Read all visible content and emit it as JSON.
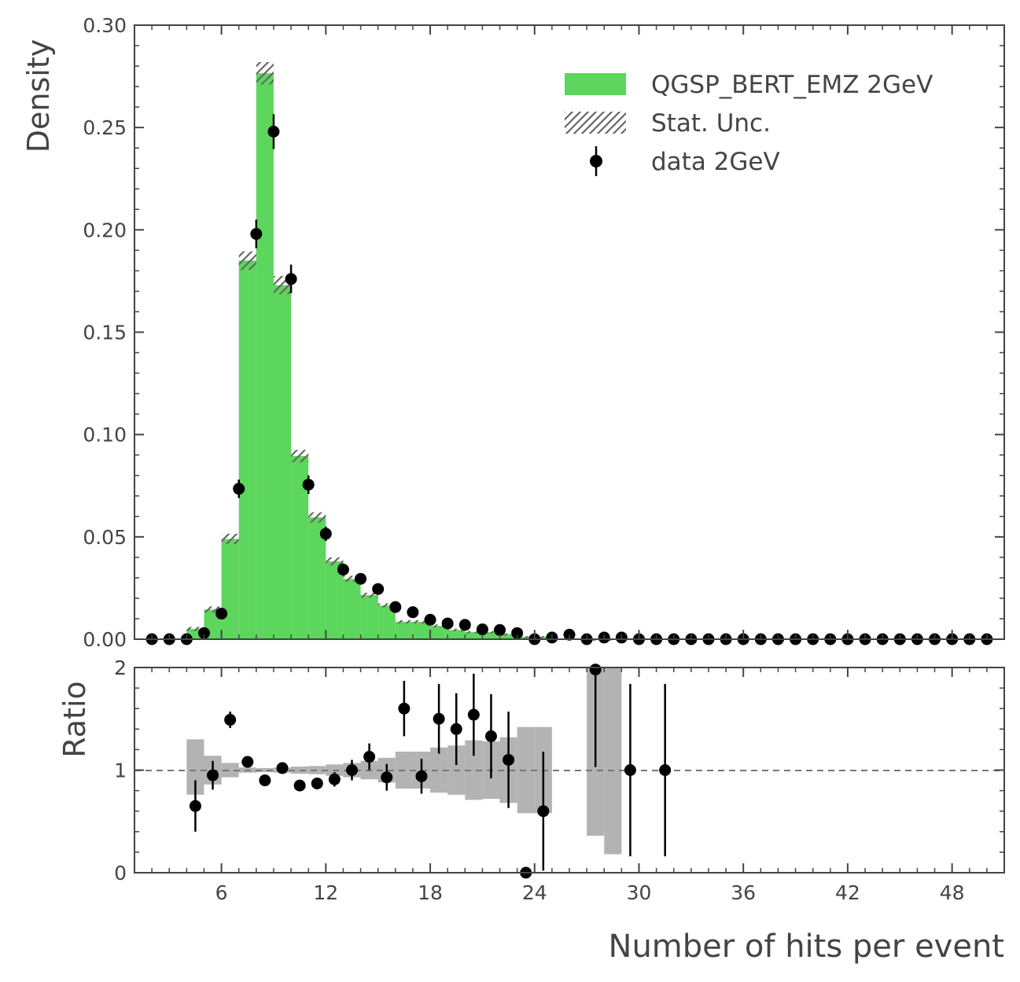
{
  "chart_data": [
    {
      "type": "bar",
      "panel": "main",
      "ylabel": "Density",
      "xlabel": "",
      "xlim": [
        1,
        51
      ],
      "ylim": [
        0,
        0.3
      ],
      "yticks": [
        "0.00",
        "0.05",
        "0.10",
        "0.15",
        "0.20",
        "0.25",
        "0.30"
      ],
      "bin_edges": [
        1,
        2,
        3,
        4,
        5,
        6,
        7,
        8,
        9,
        10,
        11,
        12,
        13,
        14,
        15,
        16,
        17,
        18,
        19,
        20,
        21,
        22,
        23,
        24,
        25,
        26,
        27,
        28,
        29,
        30,
        31,
        32,
        33,
        34,
        35,
        36,
        37,
        38,
        39,
        40,
        41,
        42,
        43,
        44,
        45,
        46,
        47,
        48,
        49,
        50,
        51
      ],
      "series": [
        {
          "name": "QGSP_BERT_EMZ 2GeV",
          "color": "#5cd65c",
          "kind": "histogram",
          "values": [
            0,
            0,
            0,
            0.005,
            0.0145,
            0.049,
            0.185,
            0.2765,
            0.173,
            0.0895,
            0.0595,
            0.038,
            0.0295,
            0.0215,
            0.0165,
            0.0085,
            0.0085,
            0.0065,
            0.0045,
            0.0035,
            0.0035,
            0.0025,
            0.0012,
            0.0012,
            0,
            0,
            0.0003,
            0.0003,
            0,
            0,
            0,
            0,
            0,
            0,
            0,
            0,
            0,
            0,
            0,
            0,
            0,
            0,
            0,
            0,
            0,
            0,
            0,
            0,
            0,
            0
          ],
          "stat_unc": [
            0,
            0,
            0,
            0.001,
            0.0015,
            0.0025,
            0.0045,
            0.0055,
            0.0045,
            0.003,
            0.0025,
            0.002,
            0.0015,
            0.0012,
            0.001,
            0.0008,
            0.0008,
            0.0007,
            0.0006,
            0.0005,
            0.0005,
            0.0004,
            0.0003,
            0.0003,
            0,
            0,
            0.0001,
            0.0001,
            0,
            0,
            0,
            0,
            0,
            0,
            0,
            0,
            0,
            0,
            0,
            0,
            0,
            0,
            0,
            0,
            0,
            0,
            0,
            0,
            0,
            0
          ]
        },
        {
          "name": "Stat. Unc.",
          "color": "#666666",
          "kind": "hatch"
        },
        {
          "name": "data 2GeV",
          "color": "#000000",
          "kind": "errorbar",
          "x": [
            2,
            3,
            4,
            5,
            6,
            7,
            8,
            9,
            10,
            11,
            12,
            13,
            14,
            15,
            16,
            17,
            18,
            19,
            20,
            21,
            22,
            23,
            24,
            25,
            26,
            27,
            28,
            29,
            30,
            31,
            32,
            33,
            34,
            35,
            36,
            37,
            38,
            39,
            40,
            41,
            42,
            43,
            44,
            45,
            46,
            47,
            48,
            49,
            50
          ],
          "values": [
            0,
            0,
            0,
            0.003,
            0.0125,
            0.0735,
            0.198,
            0.248,
            0.176,
            0.0755,
            0.0515,
            0.034,
            0.0295,
            0.0245,
            0.0157,
            0.0132,
            0.0095,
            0.0077,
            0.007,
            0.0048,
            0.0045,
            0.003,
            0,
            0.0008,
            0.0022,
            0,
            0.0008,
            0.0008,
            0,
            0,
            0,
            0,
            0,
            0,
            0,
            0,
            0,
            0,
            0,
            0,
            0,
            0,
            0,
            0,
            0,
            0,
            0,
            0,
            0
          ],
          "errors": [
            0,
            0,
            0,
            0.001,
            0.002,
            0.0045,
            0.007,
            0.0085,
            0.007,
            0.0045,
            0.0035,
            0.003,
            0.0025,
            0.0025,
            0.002,
            0.0018,
            0.0015,
            0.0013,
            0.0012,
            0.001,
            0.001,
            0.0008,
            0,
            0.0004,
            0.0006,
            0,
            0.0004,
            0.0004,
            0,
            0,
            0,
            0,
            0,
            0,
            0,
            0,
            0,
            0,
            0,
            0,
            0,
            0,
            0,
            0,
            0,
            0,
            0,
            0,
            0
          ]
        }
      ],
      "legend_position": "top-right"
    },
    {
      "type": "scatter",
      "panel": "ratio",
      "ylabel": "Ratio",
      "xlabel": "Number of hits per event",
      "xlim": [
        1,
        51
      ],
      "ylim": [
        0,
        2
      ],
      "yticks": [
        "0",
        "1",
        "2"
      ],
      "xticks": [
        6,
        12,
        18,
        24,
        30,
        36,
        42,
        48
      ],
      "xtick_labels": [
        "6",
        "12",
        "18",
        "24",
        "30",
        "36",
        "42",
        "48"
      ],
      "reference_line": 1,
      "uncertainty_band": {
        "color": "#b3b3b3",
        "bins": [
          {
            "x0": 4,
            "x1": 5,
            "lo": 0.76,
            "hi": 1.3
          },
          {
            "x0": 5,
            "x1": 6,
            "lo": 0.86,
            "hi": 1.14
          },
          {
            "x0": 6,
            "x1": 7,
            "lo": 0.93,
            "hi": 1.07
          },
          {
            "x0": 7,
            "x1": 8,
            "lo": 0.975,
            "hi": 1.025
          },
          {
            "x0": 8,
            "x1": 9,
            "lo": 0.98,
            "hi": 1.02
          },
          {
            "x0": 9,
            "x1": 10,
            "lo": 0.975,
            "hi": 1.025
          },
          {
            "x0": 10,
            "x1": 11,
            "lo": 0.965,
            "hi": 1.035
          },
          {
            "x0": 11,
            "x1": 12,
            "lo": 0.96,
            "hi": 1.04
          },
          {
            "x0": 12,
            "x1": 13,
            "lo": 0.945,
            "hi": 1.055
          },
          {
            "x0": 13,
            "x1": 14,
            "lo": 0.93,
            "hi": 1.07
          },
          {
            "x0": 14,
            "x1": 15,
            "lo": 0.91,
            "hi": 1.09
          },
          {
            "x0": 15,
            "x1": 16,
            "lo": 0.88,
            "hi": 1.12
          },
          {
            "x0": 16,
            "x1": 17,
            "lo": 0.82,
            "hi": 1.18
          },
          {
            "x0": 17,
            "x1": 18,
            "lo": 0.82,
            "hi": 1.18
          },
          {
            "x0": 18,
            "x1": 19,
            "lo": 0.78,
            "hi": 1.22
          },
          {
            "x0": 19,
            "x1": 20,
            "lo": 0.76,
            "hi": 1.24
          },
          {
            "x0": 20,
            "x1": 21,
            "lo": 0.71,
            "hi": 1.29
          },
          {
            "x0": 21,
            "x1": 22,
            "lo": 0.72,
            "hi": 1.28
          },
          {
            "x0": 22,
            "x1": 23,
            "lo": 0.68,
            "hi": 1.32
          },
          {
            "x0": 23,
            "x1": 24,
            "lo": 0.58,
            "hi": 1.42
          },
          {
            "x0": 24,
            "x1": 25,
            "lo": 0.58,
            "hi": 1.42
          },
          {
            "x0": 27,
            "x1": 28,
            "lo": 0.36,
            "hi": 2.0
          },
          {
            "x0": 28,
            "x1": 29,
            "lo": 0.18,
            "hi": 2.0
          }
        ]
      },
      "points": [
        {
          "x": 4.5,
          "y": 0.65,
          "err": 0.25
        },
        {
          "x": 5.5,
          "y": 0.95,
          "err": 0.14
        },
        {
          "x": 6.5,
          "y": 1.49,
          "err": 0.08
        },
        {
          "x": 7.5,
          "y": 1.08,
          "err": 0.03
        },
        {
          "x": 8.5,
          "y": 0.9,
          "err": 0.02
        },
        {
          "x": 9.5,
          "y": 1.02,
          "err": 0.03
        },
        {
          "x": 10.5,
          "y": 0.85,
          "err": 0.03
        },
        {
          "x": 11.5,
          "y": 0.87,
          "err": 0.04
        },
        {
          "x": 12.5,
          "y": 0.91,
          "err": 0.07
        },
        {
          "x": 13.5,
          "y": 1.0,
          "err": 0.1
        },
        {
          "x": 14.5,
          "y": 1.13,
          "err": 0.13
        },
        {
          "x": 15.5,
          "y": 0.93,
          "err": 0.13
        },
        {
          "x": 16.5,
          "y": 1.6,
          "err": 0.27
        },
        {
          "x": 17.5,
          "y": 0.94,
          "err": 0.17
        },
        {
          "x": 18.5,
          "y": 1.5,
          "err": 0.34
        },
        {
          "x": 19.5,
          "y": 1.4,
          "err": 0.35
        },
        {
          "x": 20.5,
          "y": 1.54,
          "err": 0.4
        },
        {
          "x": 21.5,
          "y": 1.33,
          "err": 0.41
        },
        {
          "x": 22.5,
          "y": 1.1,
          "err": 0.47
        },
        {
          "x": 23.5,
          "y": 0.0,
          "err": 0.0
        },
        {
          "x": 24.5,
          "y": 0.6,
          "err": 0.58
        },
        {
          "x": 27.5,
          "y": 1.98,
          "err": 0.95
        },
        {
          "x": 29.5,
          "y": 1.0,
          "err": 0.84
        },
        {
          "x": 31.5,
          "y": 1.0,
          "err": 0.84
        }
      ]
    }
  ]
}
